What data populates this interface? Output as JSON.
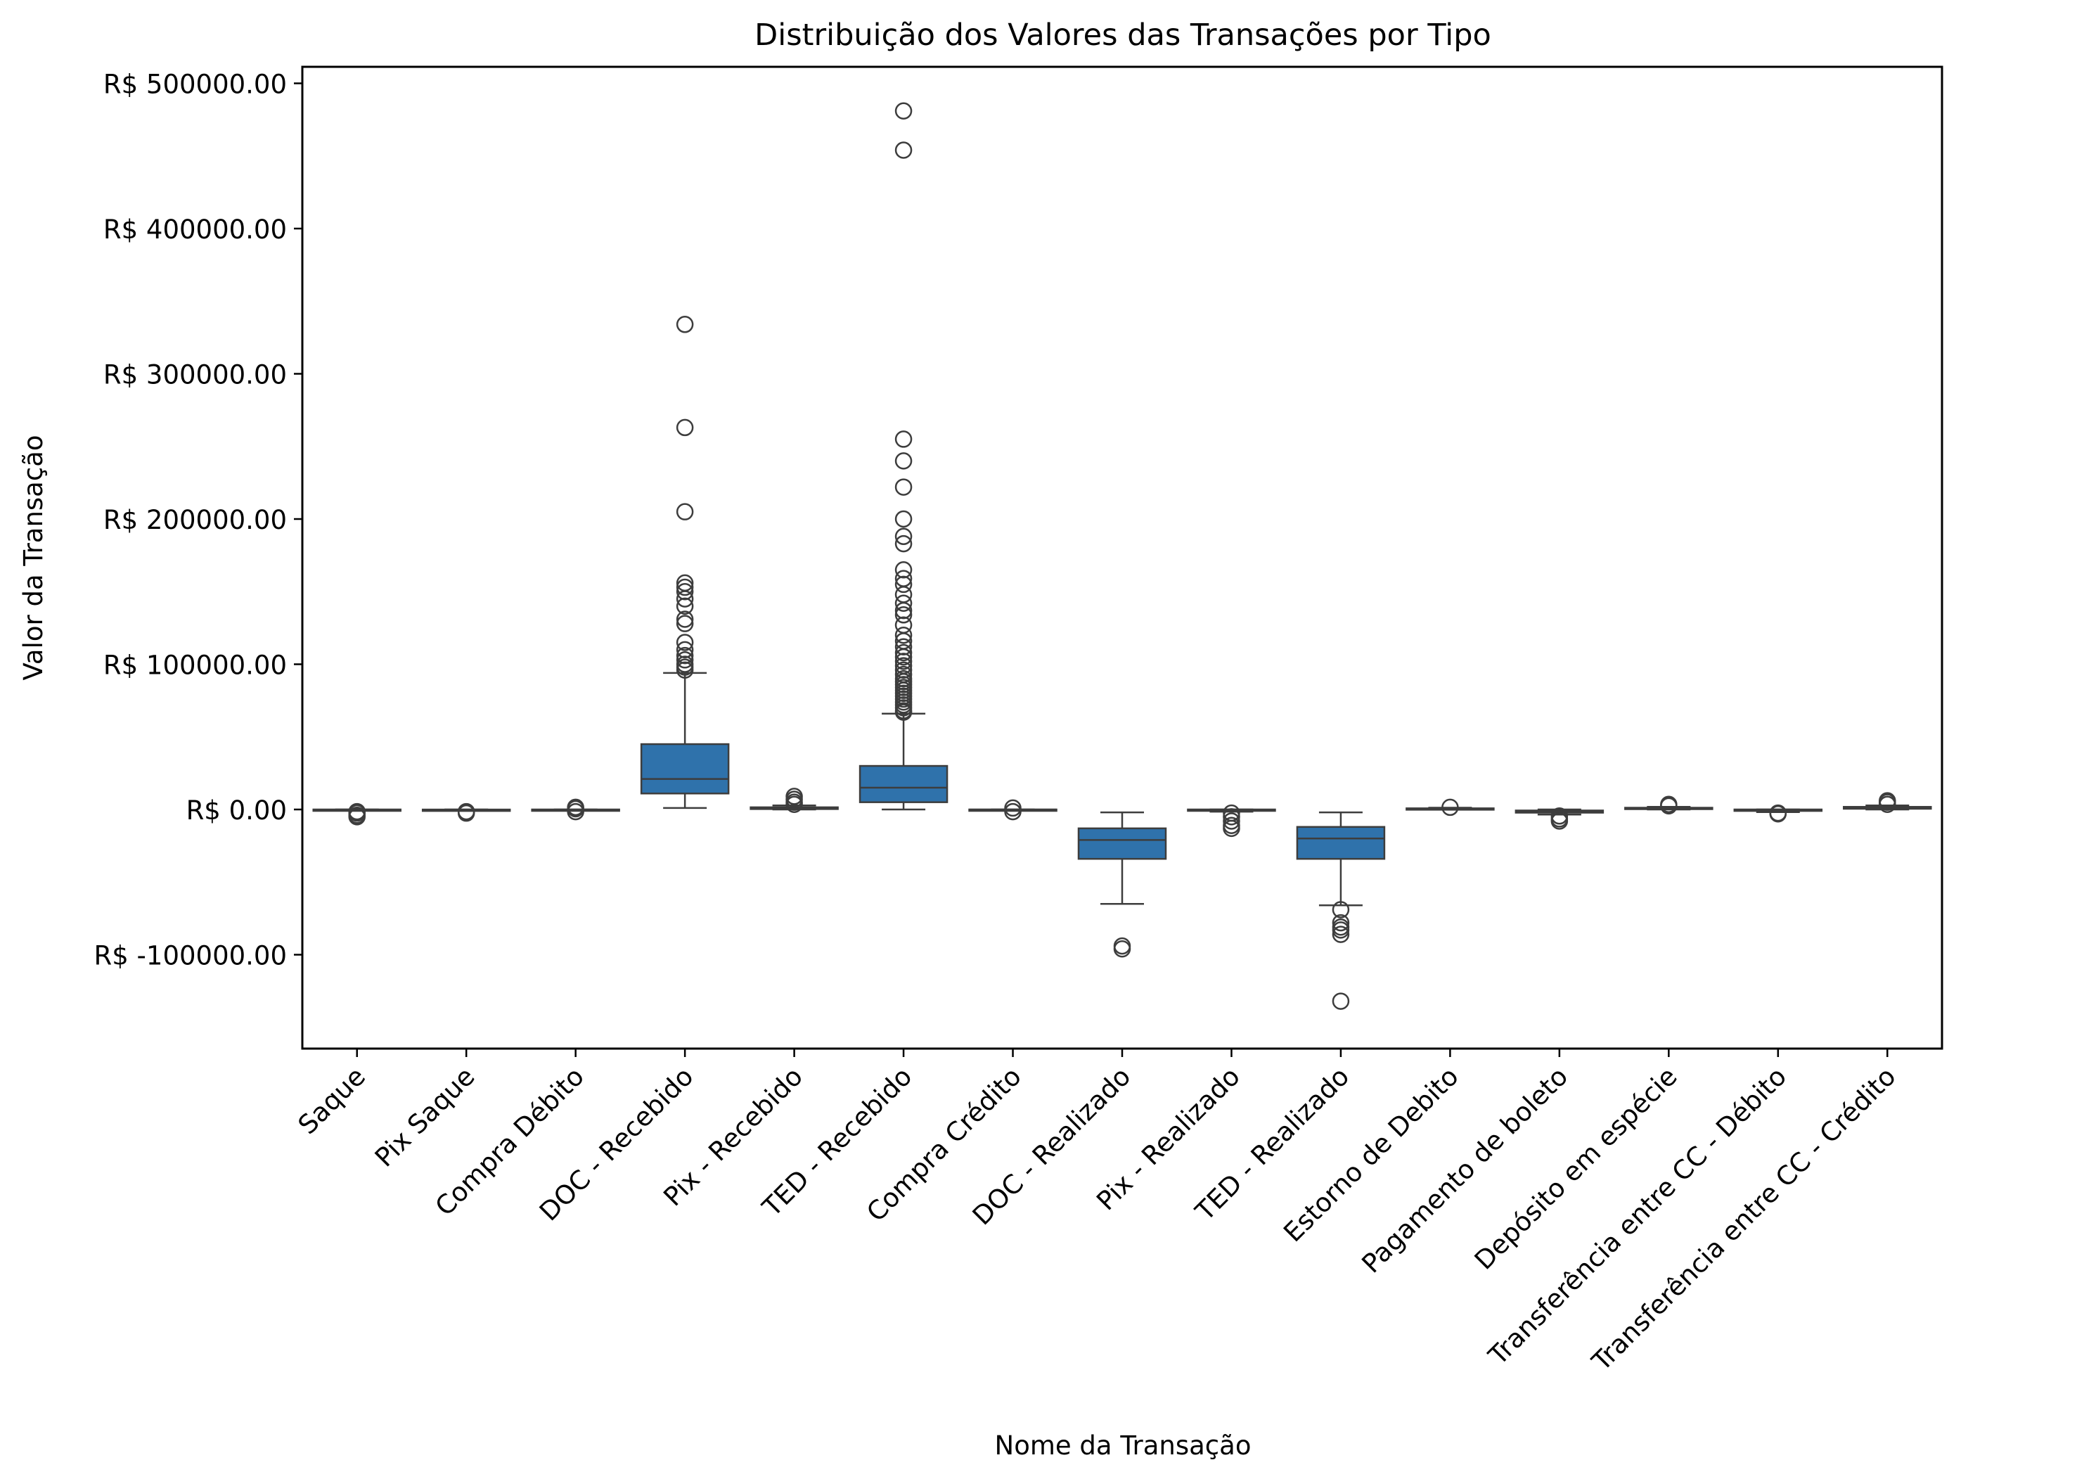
{
  "chart_data": {
    "type": "box",
    "title": "Distribuição dos Valores das Transações por Tipo",
    "xlabel": "Nome da Transação",
    "ylabel": "Valor da Transação",
    "ylim": [
      -165000,
      512000
    ],
    "yticks": [
      -100000,
      0,
      100000,
      200000,
      300000,
      400000,
      500000
    ],
    "ytick_labels": [
      "R$ -100000.00",
      "R$ 0.00",
      "R$ 100000.00",
      "R$ 200000.00",
      "R$ 300000.00",
      "R$ 400000.00",
      "R$ 500000.00"
    ],
    "box_color": "#2f72ab",
    "edge_color": "#3d3d3d",
    "grid": false,
    "legend": "none",
    "categories": [
      "Saque",
      "Pix Saque",
      "Compra Débito",
      "DOC - Recebido",
      "Pix - Recebido",
      "TED - Recebido",
      "Compra Crédito",
      "DOC - Realizado",
      "Pix - Realizado",
      "TED - Realizado",
      "Estorno de Debito",
      "Pagamento de boleto",
      "Depósito em espécie",
      "Transferência entre CC - Débito",
      "Transferência entre CC - Crédito"
    ],
    "boxes": [
      {
        "whislo": -600,
        "q1": -300,
        "med": -100,
        "q3": 0,
        "whishi": 0,
        "fliers": [
          -1500,
          -2500,
          -4000,
          -5000
        ]
      },
      {
        "whislo": -800,
        "q1": -400,
        "med": -200,
        "q3": -50,
        "whishi": 0,
        "fliers": [
          -1500,
          -2500
        ]
      },
      {
        "whislo": -600,
        "q1": -300,
        "med": -100,
        "q3": 0,
        "whishi": 0,
        "fliers": [
          -1500,
          500,
          1500
        ]
      },
      {
        "whislo": 1000,
        "q1": 11000,
        "med": 21000,
        "q3": 45000,
        "whishi": 94000,
        "fliers": [
          96000,
          98000,
          100000,
          103000,
          106000,
          110000,
          115000,
          128000,
          131000,
          140000,
          145000,
          150000,
          153000,
          156000,
          205000,
          263000,
          334000
        ]
      },
      {
        "whislo": 0,
        "q1": 300,
        "med": 800,
        "q3": 1500,
        "whishi": 2800,
        "fliers": [
          3500,
          5000,
          7000,
          9000
        ]
      },
      {
        "whislo": 0,
        "q1": 5000,
        "med": 15000,
        "q3": 30000,
        "whishi": 66000,
        "fliers": [
          67000,
          68000,
          70000,
          72000,
          74000,
          76000,
          78000,
          80000,
          82000,
          84000,
          86000,
          88000,
          90000,
          93000,
          96000,
          99000,
          102000,
          105000,
          108000,
          112000,
          116000,
          120000,
          127000,
          134000,
          137000,
          142000,
          148000,
          155000,
          159000,
          165000,
          183000,
          188000,
          200000,
          222000,
          240000,
          255000,
          454000,
          481000
        ]
      },
      {
        "whislo": -500,
        "q1": -200,
        "med": -50,
        "q3": 0,
        "whishi": 0,
        "fliers": [
          -1500,
          1000
        ]
      },
      {
        "whislo": -65000,
        "q1": -34000,
        "med": -21000,
        "q3": -13000,
        "whishi": -2000,
        "fliers": [
          -94000,
          -96000
        ]
      },
      {
        "whislo": -1500,
        "q1": -800,
        "med": -300,
        "q3": 0,
        "whishi": 0,
        "fliers": [
          -2500,
          -5000,
          -8000,
          -11000,
          -13000
        ]
      },
      {
        "whislo": -66000,
        "q1": -34000,
        "med": -20000,
        "q3": -12000,
        "whishi": -2000,
        "fliers": [
          -69000,
          -78000,
          -81000,
          -83000,
          -86000,
          -132000
        ]
      },
      {
        "whislo": 0,
        "q1": 100,
        "med": 400,
        "q3": 800,
        "whishi": 1200,
        "fliers": [
          1500
        ]
      },
      {
        "whislo": -3500,
        "q1": -2200,
        "med": -1500,
        "q3": -700,
        "whishi": 0,
        "fliers": [
          -4500,
          -6500,
          -8000
        ]
      },
      {
        "whislo": 0,
        "q1": 300,
        "med": 700,
        "q3": 1200,
        "whishi": 1800,
        "fliers": [
          2500,
          3500
        ]
      },
      {
        "whislo": -1800,
        "q1": -1000,
        "med": -500,
        "q3": 0,
        "whishi": 0,
        "fliers": [
          -2500,
          -3000
        ]
      },
      {
        "whislo": 0,
        "q1": 500,
        "med": 1000,
        "q3": 1800,
        "whishi": 2800,
        "fliers": [
          3500,
          5000,
          6000
        ]
      }
    ]
  }
}
